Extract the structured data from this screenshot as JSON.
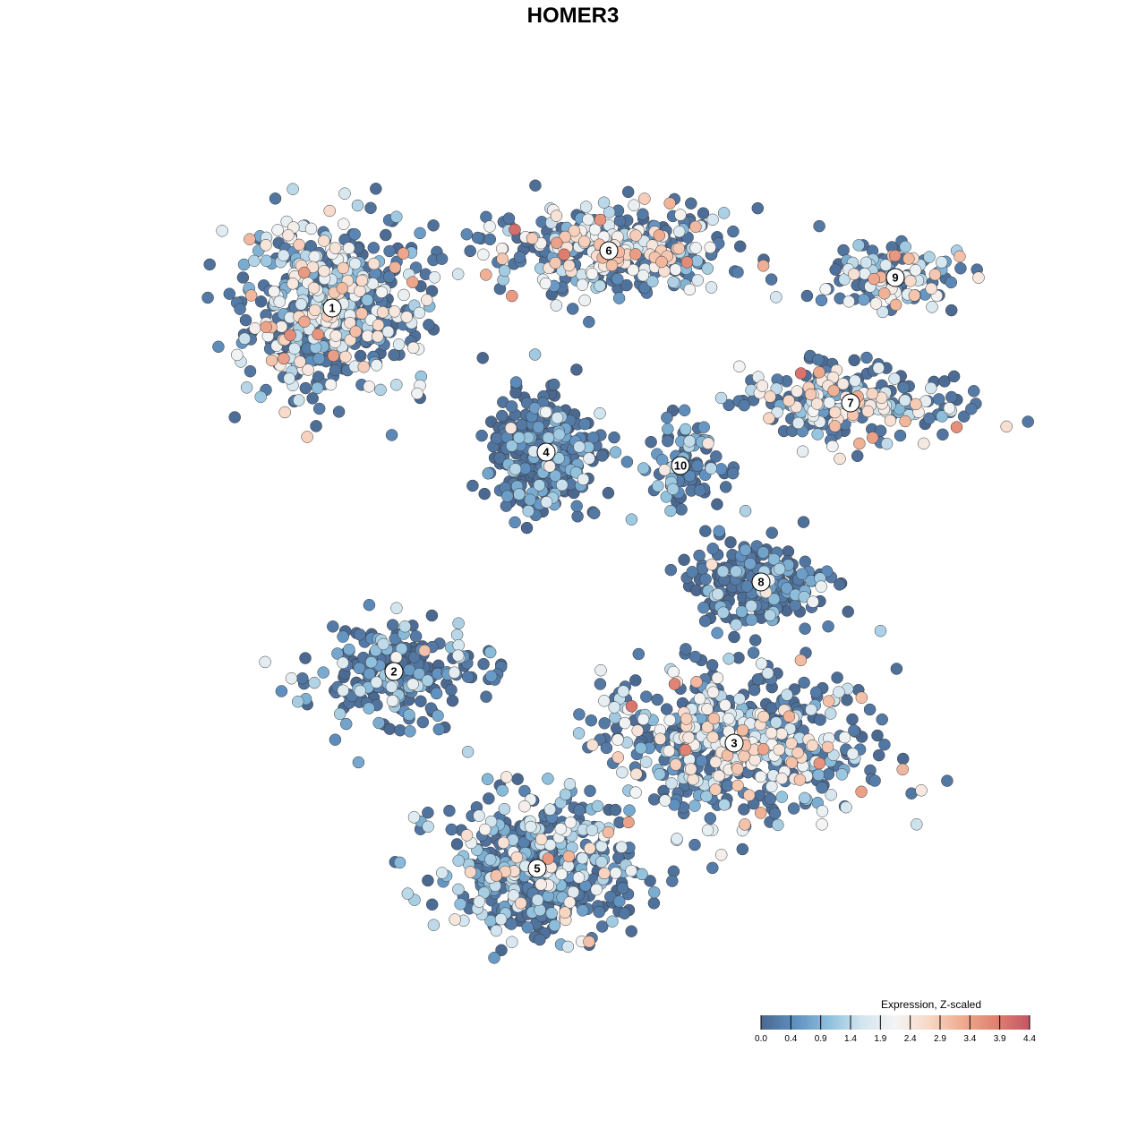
{
  "chart_data": {
    "type": "scatter",
    "title": "HOMER3",
    "xlabel": "",
    "ylabel": "",
    "grid": false,
    "legend": {
      "title": "Expression, Z-scaled",
      "placement": "bottom-right",
      "ticks": [
        "0.0",
        "0.4",
        "0.9",
        "1.4",
        "1.9",
        "2.4",
        "2.9",
        "3.4",
        "3.9",
        "4.4"
      ],
      "range": [
        0.0,
        4.4
      ],
      "colors": [
        "#4a6890",
        "#5f8fbf",
        "#8dbfdc",
        "#d2e5ef",
        "#f4f4f4",
        "#f8d8c6",
        "#efab8f",
        "#e08070",
        "#c45565"
      ]
    },
    "clusters": [
      {
        "label": "1",
        "center": [
          -26.9,
          29.6
        ],
        "spread": [
          8,
          8
        ],
        "n": 520,
        "mean_expression": 1.7
      },
      {
        "label": "2",
        "center": [
          -20,
          -11
        ],
        "spread": [
          8,
          4.5
        ],
        "n": 230,
        "mean_expression": 0.7
      },
      {
        "label": "3",
        "center": [
          18,
          -19
        ],
        "spread": [
          12,
          7
        ],
        "n": 560,
        "mean_expression": 1.7
      },
      {
        "label": "4",
        "center": [
          -3,
          13.5
        ],
        "spread": [
          5,
          5.5
        ],
        "n": 330,
        "mean_expression": 0.3
      },
      {
        "label": "5",
        "center": [
          -4,
          -33
        ],
        "spread": [
          9,
          6.5
        ],
        "n": 480,
        "mean_expression": 1.2
      },
      {
        "label": "6",
        "center": [
          4,
          36
        ],
        "spread": [
          11,
          4
        ],
        "n": 360,
        "mean_expression": 1.8
      },
      {
        "label": "7",
        "center": [
          31,
          19
        ],
        "spread": [
          10,
          3.5
        ],
        "n": 230,
        "mean_expression": 1.9
      },
      {
        "label": "8",
        "center": [
          21,
          -1
        ],
        "spread": [
          7,
          4
        ],
        "n": 230,
        "mean_expression": 0.4
      },
      {
        "label": "9",
        "center": [
          36,
          33
        ],
        "spread": [
          6,
          3
        ],
        "n": 120,
        "mean_expression": 1.7
      },
      {
        "label": "10",
        "center": [
          12,
          12
        ],
        "spread": [
          3.5,
          4
        ],
        "n": 90,
        "mean_expression": 0.6
      }
    ]
  }
}
